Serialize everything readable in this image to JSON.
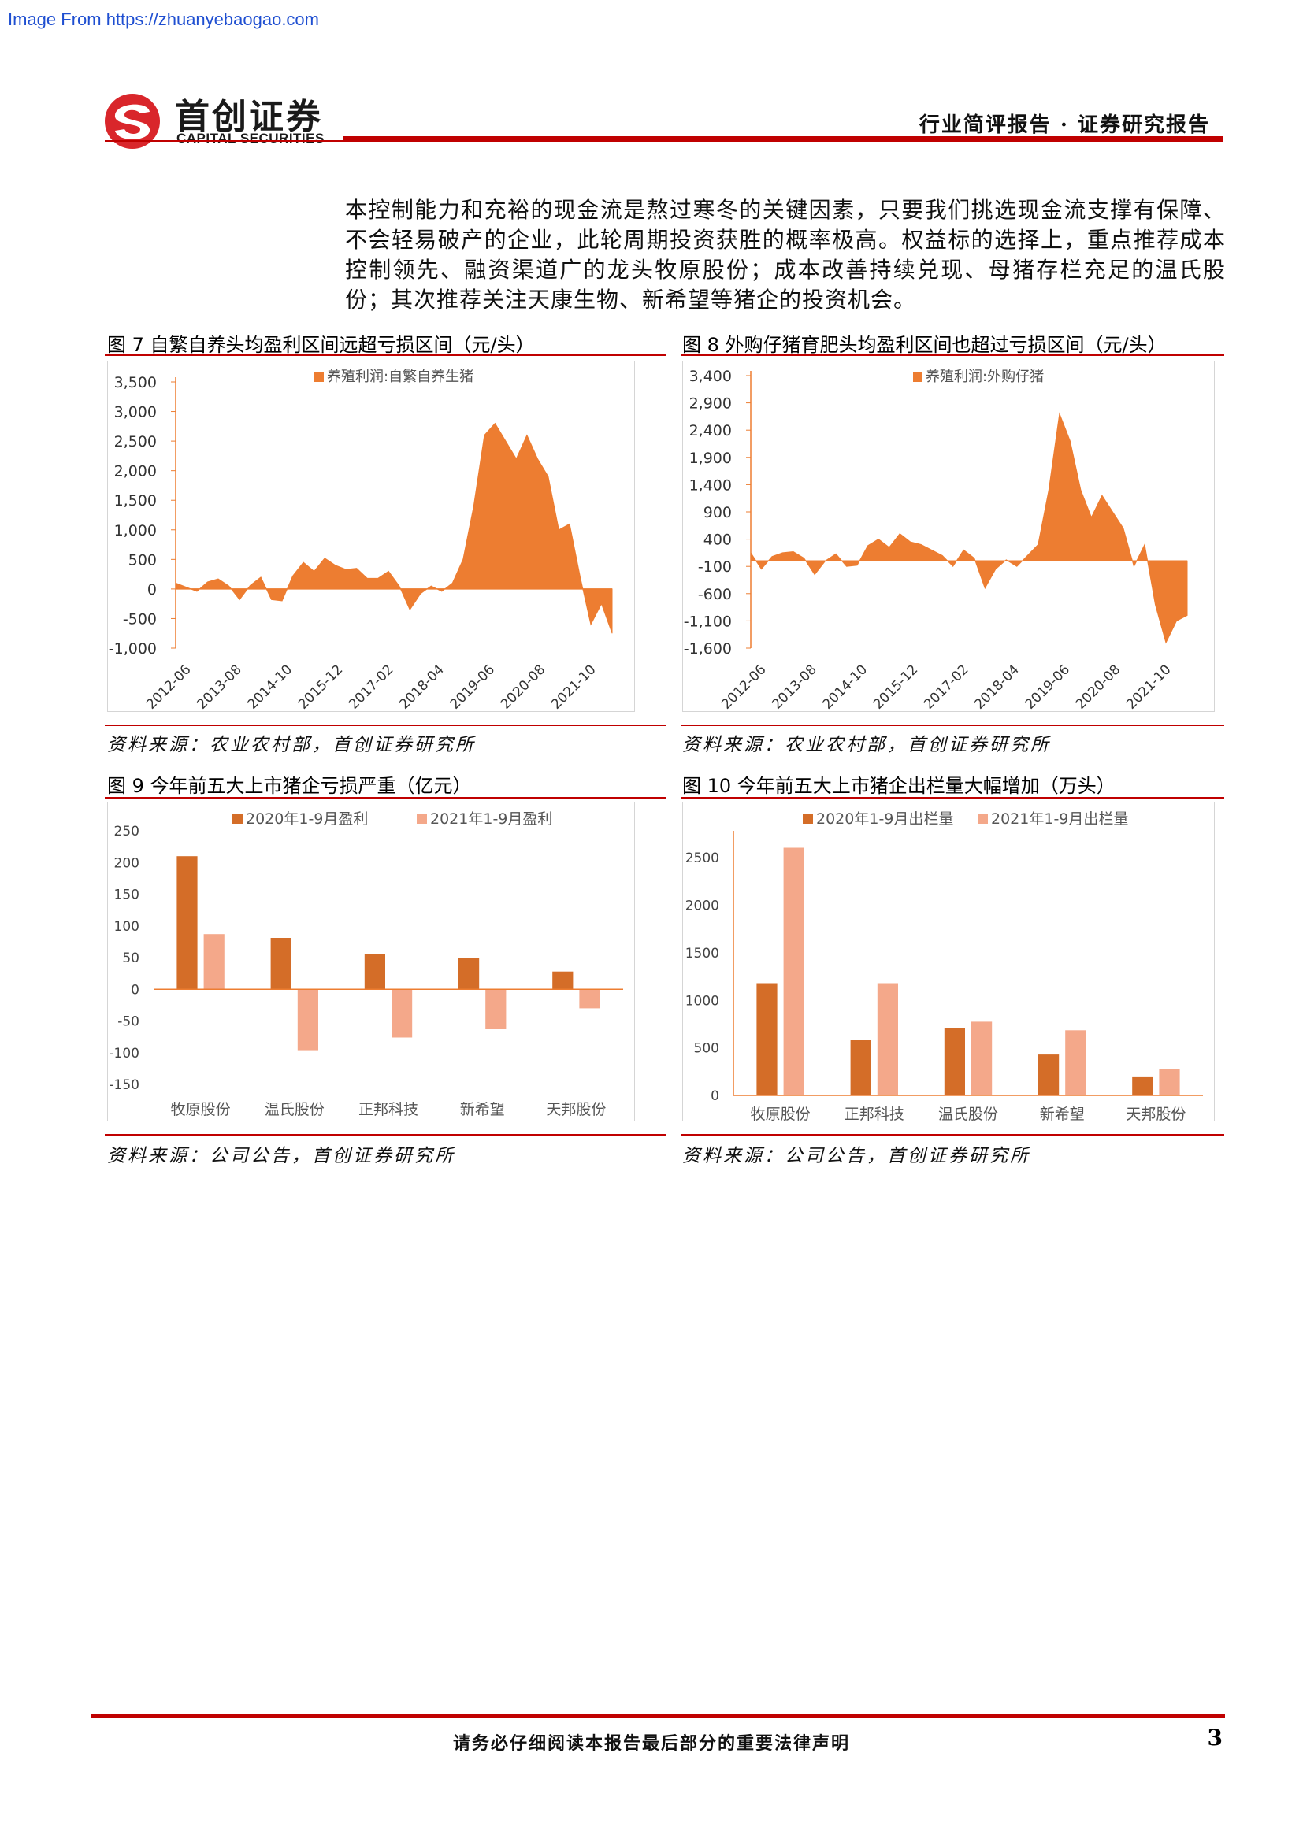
{
  "watermark": "Image From https://zhuanyebaogao.com",
  "header": {
    "logo_cn": "首创证券",
    "logo_en": "CAPITAL SECURITIES",
    "report_type": "行业简评报告 · 证券研究报告"
  },
  "body_text": "本控制能力和充裕的现金流是熬过寒冬的关键因素，只要我们挑选现金流支撑有保障、不会轻易破产的企业，此轮周期投资获胜的概率极高。权益标的选择上，重点推荐成本控制领先、融资渠道广的龙头牧原股份；成本改善持续兑现、母猪存栏充足的温氏股份；其次推荐关注天康生物、新希望等猪企的投资机会。",
  "figures": {
    "fig7": {
      "title": "图 7 自繁自养头均盈利区间远超亏损区间（元/头）",
      "source": "资料来源：农业农村部，首创证券研究所"
    },
    "fig8": {
      "title": "图 8 外购仔猪育肥头均盈利区间也超过亏损区间（元/头）",
      "source": "资料来源：农业农村部，首创证券研究所"
    },
    "fig9": {
      "title": "图 9 今年前五大上市猪企亏损严重（亿元）",
      "source": "资料来源：公司公告，首创证券研究所"
    },
    "fig10": {
      "title": "图 10 今年前五大上市猪企出栏量大幅增加（万头）",
      "source": "资料来源：公司公告，首创证券研究所"
    }
  },
  "chart_data": [
    {
      "id": "fig7",
      "type": "area",
      "series": [
        {
          "name": "养殖利润:自繁自养生猪",
          "color": "#ed7d31"
        }
      ],
      "x_tick_labels": [
        "2012-06",
        "2013-08",
        "2014-10",
        "2015-12",
        "2017-02",
        "2018-04",
        "2019-06",
        "2020-08",
        "2021-10"
      ],
      "y_ticks": [
        -1000,
        -500,
        0,
        500,
        1000,
        1500,
        2000,
        2500,
        3000,
        3500
      ],
      "y_tick_labels": [
        "-1,000",
        "-500",
        "0",
        "500",
        "1,000",
        "1,500",
        "2,000",
        "2,500",
        "3,000",
        "3,500"
      ],
      "ylim": [
        -1000,
        3500
      ],
      "x": [
        "2012-06",
        "2012-10",
        "2013-02",
        "2013-05",
        "2013-08",
        "2013-11",
        "2014-03",
        "2014-06",
        "2014-10",
        "2015-01",
        "2015-04",
        "2015-08",
        "2015-12",
        "2016-03",
        "2016-06",
        "2016-09",
        "2016-12",
        "2017-02",
        "2017-05",
        "2017-08",
        "2017-11",
        "2018-02",
        "2018-04",
        "2018-07",
        "2018-10",
        "2019-01",
        "2019-04",
        "2019-06",
        "2019-08",
        "2019-10",
        "2019-12",
        "2020-02",
        "2020-04",
        "2020-06",
        "2020-08",
        "2020-10",
        "2020-12",
        "2021-02",
        "2021-04",
        "2021-06",
        "2021-08",
        "2021-10"
      ],
      "values": [
        100,
        30,
        -40,
        120,
        170,
        50,
        -180,
        60,
        200,
        -180,
        -200,
        220,
        450,
        300,
        520,
        400,
        330,
        350,
        180,
        180,
        300,
        50,
        -350,
        -80,
        50,
        -40,
        100,
        500,
        1400,
        2600,
        2800,
        2500,
        2200,
        2600,
        2200,
        1900,
        1000,
        1100,
        200,
        -600,
        -250,
        -750
      ]
    },
    {
      "id": "fig8",
      "type": "area",
      "series": [
        {
          "name": "养殖利润:外购仔猪",
          "color": "#ed7d31"
        }
      ],
      "x_tick_labels": [
        "2012-06",
        "2013-08",
        "2014-10",
        "2015-12",
        "2017-02",
        "2018-04",
        "2019-06",
        "2020-08",
        "2021-10"
      ],
      "y_ticks": [
        -1600,
        -1100,
        -600,
        -100,
        400,
        900,
        1400,
        1900,
        2400,
        2900,
        3400
      ],
      "y_tick_labels": [
        "-1,600",
        "-1,100",
        "-600",
        "-100",
        "400",
        "900",
        "1,400",
        "1,900",
        "2,400",
        "2,900",
        "3,400"
      ],
      "ylim": [
        -1600,
        3400
      ],
      "x": [
        "2012-06",
        "2012-10",
        "2013-02",
        "2013-05",
        "2013-08",
        "2013-11",
        "2014-03",
        "2014-06",
        "2014-10",
        "2015-01",
        "2015-04",
        "2015-08",
        "2015-12",
        "2016-03",
        "2016-06",
        "2016-09",
        "2016-12",
        "2017-02",
        "2017-05",
        "2017-08",
        "2017-11",
        "2018-02",
        "2018-04",
        "2018-07",
        "2018-10",
        "2019-01",
        "2019-04",
        "2019-06",
        "2019-08",
        "2019-10",
        "2019-12",
        "2020-02",
        "2020-04",
        "2020-06",
        "2020-08",
        "2020-10",
        "2020-12",
        "2021-02",
        "2021-04",
        "2021-06",
        "2021-08",
        "2021-10"
      ],
      "values": [
        150,
        -150,
        80,
        150,
        170,
        50,
        -250,
        0,
        130,
        -100,
        -80,
        280,
        400,
        250,
        500,
        350,
        300,
        200,
        100,
        -100,
        200,
        50,
        -500,
        -150,
        20,
        -100,
        100,
        300,
        1300,
        2700,
        2200,
        1300,
        800,
        1200,
        900,
        600,
        -100,
        300,
        -800,
        -1500,
        -1100,
        -1000
      ]
    },
    {
      "id": "fig9",
      "type": "bar",
      "categories": [
        "牧原股份",
        "温氏股份",
        "正邦科技",
        "新希望",
        "天邦股份"
      ],
      "series": [
        {
          "name": "2020年1-9月盈利",
          "color": "#d46d28",
          "values": [
            210,
            81,
            55,
            50,
            28
          ]
        },
        {
          "name": "2021年1-9月盈利",
          "color": "#f4a88a",
          "values": [
            87,
            -96,
            -76,
            -63,
            -30
          ]
        }
      ],
      "y_ticks": [
        -150,
        -100,
        -50,
        0,
        50,
        100,
        150,
        200,
        250
      ],
      "ylim": [
        -150,
        250
      ]
    },
    {
      "id": "fig10",
      "type": "bar",
      "categories": [
        "牧原股份",
        "正邦科技",
        "温氏股份",
        "新希望",
        "天邦股份"
      ],
      "series": [
        {
          "name": "2020年1-9月出栏量",
          "color": "#d46d28",
          "values": [
            1180,
            585,
            705,
            430,
            200
          ]
        },
        {
          "name": "2021年1-9月出栏量",
          "color": "#f4a88a",
          "values": [
            2605,
            1180,
            775,
            685,
            275
          ]
        }
      ],
      "y_ticks": [
        0,
        500,
        1000,
        1500,
        2000,
        2500
      ],
      "ylim": [
        0,
        2700
      ]
    }
  ],
  "footer": {
    "disclaimer": "请务必仔细阅读本报告最后部分的重要法律声明",
    "page_number": "3"
  }
}
